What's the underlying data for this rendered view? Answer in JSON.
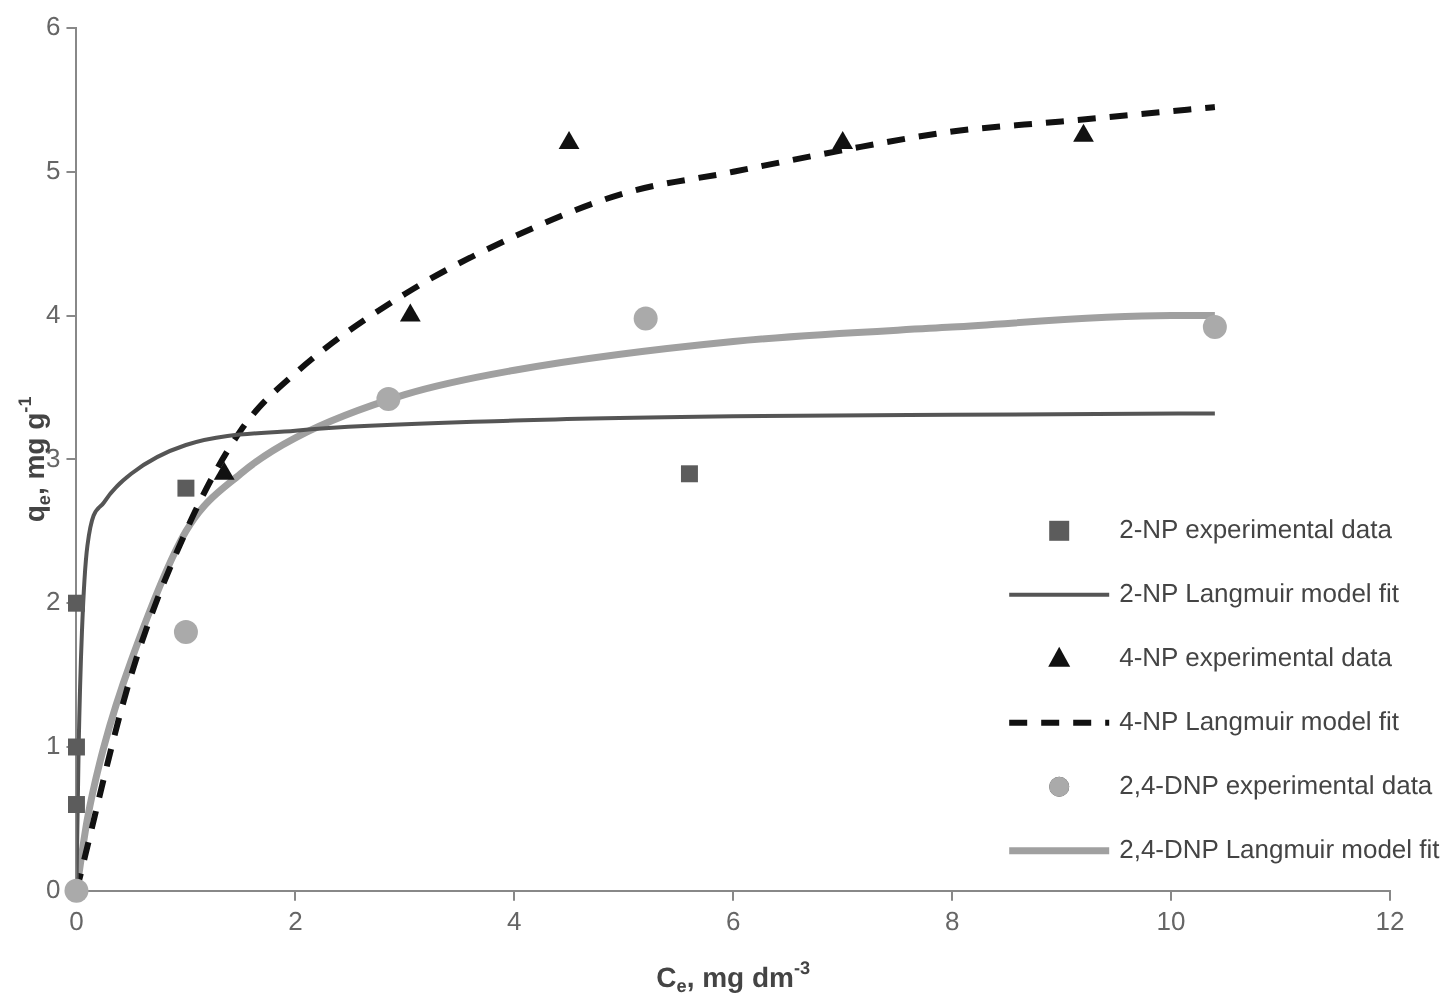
{
  "chart_data": {
    "type": "scatter",
    "xlabel": "C$_{e}$, mg dm$^{-3}$",
    "ylabel": "q$_{e}$, mg g$^{-1}$",
    "xlim": [
      0,
      12
    ],
    "xticks": [
      0,
      2,
      4,
      6,
      8,
      10,
      12
    ],
    "ylim": [
      0,
      6
    ],
    "yticks": [
      0,
      1,
      2,
      3,
      4,
      5,
      6
    ],
    "grid": false,
    "legend": "right",
    "series": [
      {
        "name": "2-NP experimental data",
        "marker": "square",
        "color": "#5c5c5c",
        "x": [
          0,
          0,
          0,
          1,
          5.6
        ],
        "values": [
          0.6,
          1,
          2,
          2.8,
          2.9
        ]
      },
      {
        "name": "2-NP Langmuir model fit",
        "type": "line",
        "marker": "none",
        "line_style": "solid",
        "color": "#555555",
        "x": [
          0,
          0.02,
          0.05,
          0.1,
          0.25,
          0.5,
          1,
          2,
          4,
          6,
          8,
          10.4
        ],
        "values": [
          0,
          1.0,
          1.8,
          2.4,
          2.7,
          2.9,
          3.1,
          3.2,
          3.27,
          3.3,
          3.31,
          3.32
        ]
      },
      {
        "name": "4-NP experimental data",
        "marker": "triangle",
        "color": "#111111",
        "x": [
          1.35,
          3.05,
          4.5,
          7,
          9.2
        ],
        "values": [
          2.9,
          4.0,
          5.2,
          5.2,
          5.25
        ]
      },
      {
        "name": "4-NP Langmuir model fit",
        "type": "line",
        "marker": "none",
        "line_style": "dashed",
        "color": "#111111",
        "x": [
          0,
          0.5,
          1,
          1.5,
          2,
          3,
          4,
          5,
          6,
          7,
          8,
          9,
          10.4
        ],
        "values": [
          0,
          1.5,
          2.5,
          3.2,
          3.6,
          4.15,
          4.55,
          4.85,
          5.0,
          5.15,
          5.28,
          5.35,
          5.45
        ]
      },
      {
        "name": "2,4-DNP experimental data",
        "marker": "circle",
        "color": "#aaaaaa",
        "x": [
          0,
          1,
          2.85,
          5.2,
          10.4
        ],
        "values": [
          0,
          1.8,
          3.42,
          3.98,
          3.92
        ]
      },
      {
        "name": "2,4-DNP Langmuir model fit",
        "type": "line",
        "marker": "none",
        "line_style": "solid",
        "color": "#a0a0a0",
        "x": [
          0,
          0.1,
          0.25,
          0.5,
          1,
          1.5,
          2,
          3,
          4,
          6,
          8,
          10,
          10.4
        ],
        "values": [
          0,
          0.5,
          1.0,
          1.6,
          2.5,
          2.9,
          3.15,
          3.45,
          3.62,
          3.82,
          3.92,
          4.0,
          4.0
        ]
      }
    ]
  }
}
